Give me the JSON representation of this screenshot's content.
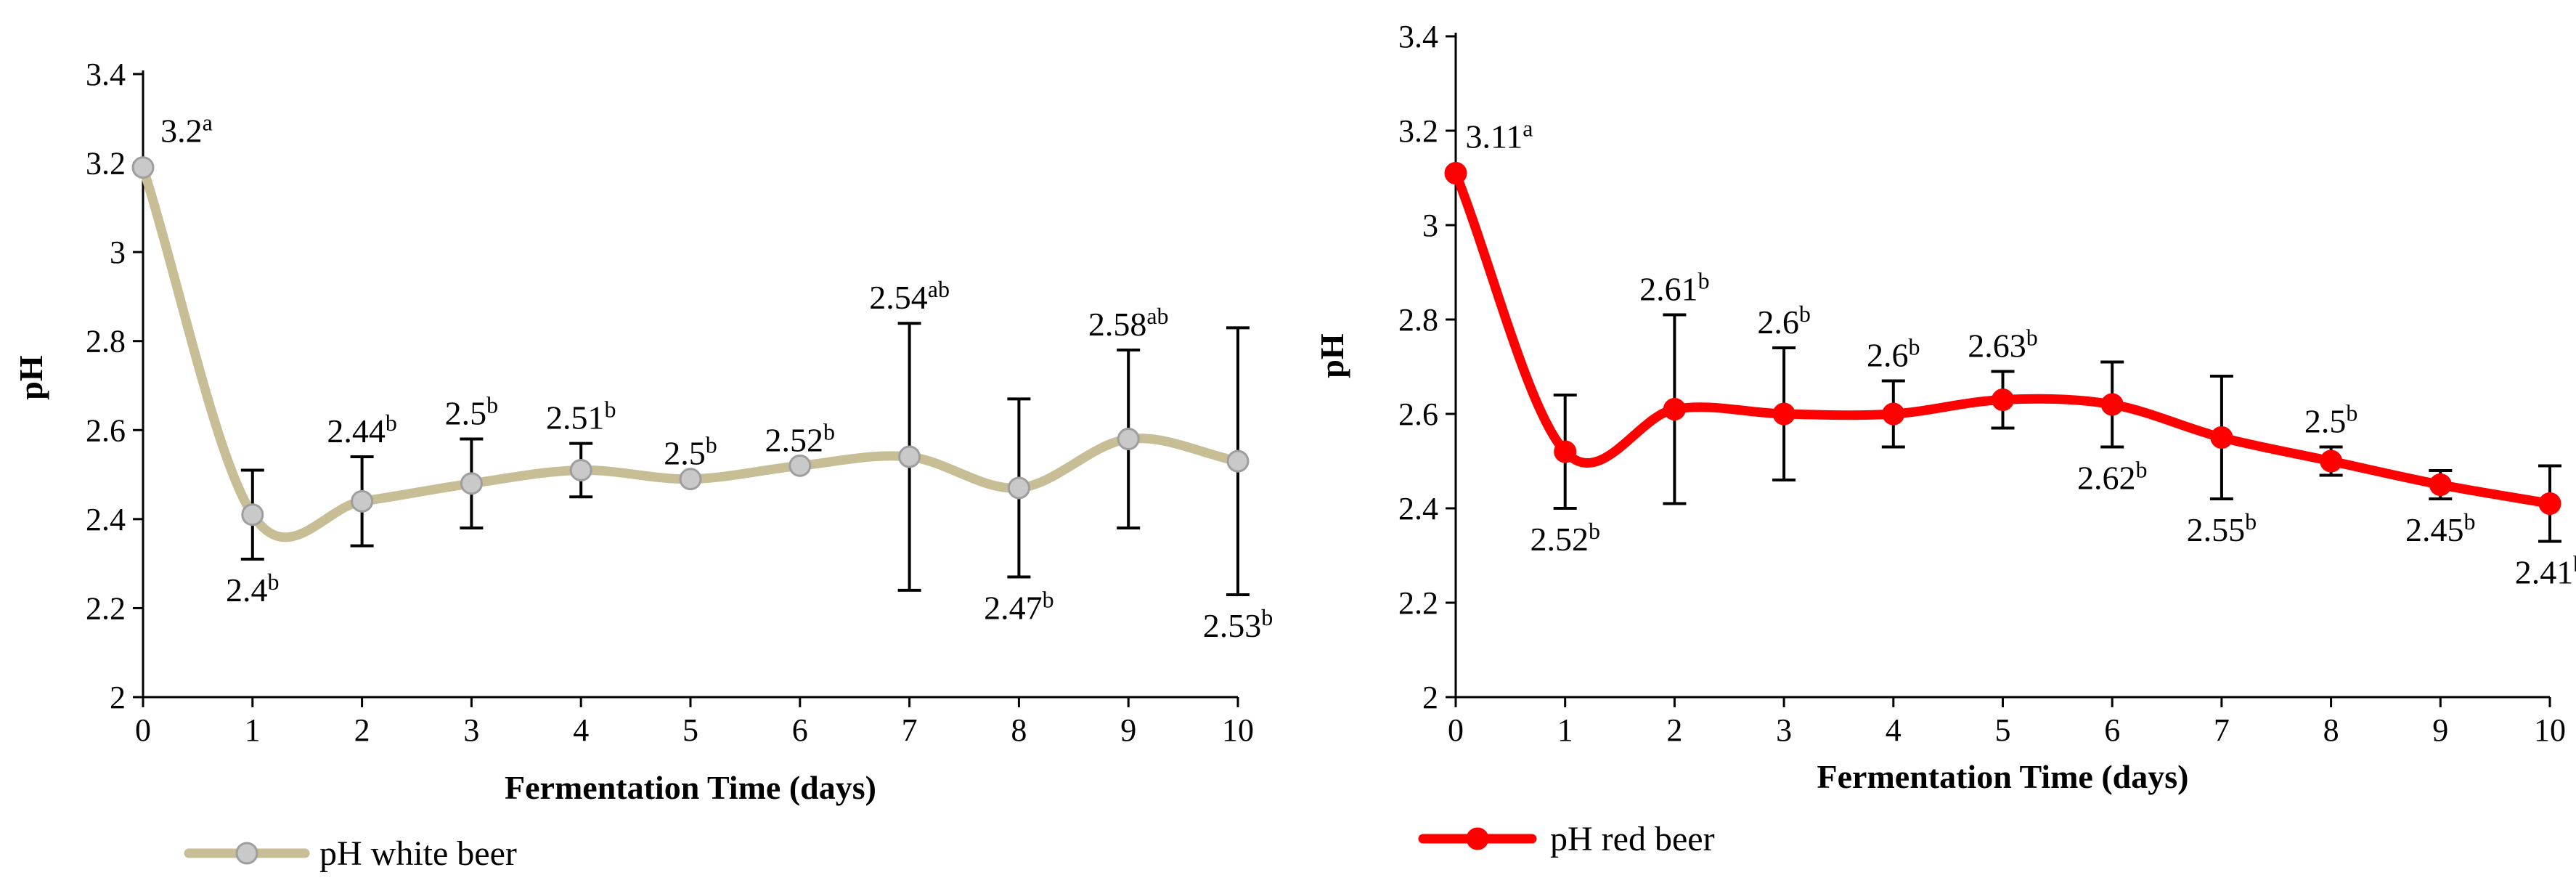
{
  "chart_data": [
    {
      "type": "line",
      "series_name": "pH white beer",
      "color": "#C8BE96",
      "marker_fill": "#C9C9C9",
      "marker_stroke": "#9E9E9E",
      "xlabel": "Fermentation Time (days)",
      "ylabel": "pH",
      "xlim": [
        0,
        10
      ],
      "ylim": [
        2,
        3.4
      ],
      "x_ticks": [
        "0",
        "1",
        "2",
        "3",
        "4",
        "5",
        "6",
        "7",
        "8",
        "9",
        "10"
      ],
      "y_ticks": [
        "2",
        "2.2",
        "2.4",
        "2.6",
        "2.8",
        "3",
        "3.2",
        "3.4"
      ],
      "x": [
        0,
        1,
        2,
        3,
        4,
        5,
        6,
        7,
        8,
        9,
        10
      ],
      "values": [
        3.19,
        2.41,
        2.44,
        2.48,
        2.51,
        2.49,
        2.52,
        2.54,
        2.47,
        2.58,
        2.53
      ],
      "error": [
        0,
        0.1,
        0.1,
        0.1,
        0.06,
        0,
        0,
        0.3,
        0.2,
        0.2,
        0.3
      ],
      "labels": [
        {
          "value": "3.2",
          "sup": "a"
        },
        {
          "value": "2.4",
          "sup": "b"
        },
        {
          "value": "2.44",
          "sup": "b"
        },
        {
          "value": "2.5",
          "sup": "b"
        },
        {
          "value": "2.51",
          "sup": "b"
        },
        {
          "value": "2.5",
          "sup": "b"
        },
        {
          "value": "2.52",
          "sup": "b"
        },
        {
          "value": "2.54",
          "sup": "ab"
        },
        {
          "value": "2.47",
          "sup": "b"
        },
        {
          "value": "2.58",
          "sup": "ab"
        },
        {
          "value": "2.53",
          "sup": "b"
        }
      ],
      "label_side": [
        "top",
        "bottom",
        "top",
        "top",
        "top",
        "top",
        "top",
        "top",
        "bottom",
        "top",
        "bottom"
      ],
      "legend": "pH white beer"
    },
    {
      "type": "line",
      "series_name": "pH red beer",
      "color": "#FF0000",
      "marker_fill": "#FF0000",
      "marker_stroke": "#FF0000",
      "xlabel": "Fermentation Time (days)",
      "ylabel": "pH",
      "xlim": [
        0,
        10
      ],
      "ylim": [
        2,
        3.4
      ],
      "x_ticks": [
        "0",
        "1",
        "2",
        "3",
        "4",
        "5",
        "6",
        "7",
        "8",
        "9",
        "10"
      ],
      "y_ticks": [
        "2",
        "2.2",
        "2.4",
        "2.6",
        "2.8",
        "3",
        "3.2",
        "3.4"
      ],
      "x": [
        0,
        1,
        2,
        3,
        4,
        5,
        6,
        7,
        8,
        9,
        10
      ],
      "values": [
        3.11,
        2.52,
        2.61,
        2.6,
        2.6,
        2.63,
        2.62,
        2.55,
        2.5,
        2.45,
        2.41
      ],
      "error": [
        0,
        0.12,
        0.2,
        0.14,
        0.07,
        0.06,
        0.09,
        0.13,
        0.03,
        0.03,
        0.08
      ],
      "labels": [
        {
          "value": "3.11",
          "sup": "a"
        },
        {
          "value": "2.52",
          "sup": "b"
        },
        {
          "value": "2.61",
          "sup": "b"
        },
        {
          "value": "2.6",
          "sup": "b"
        },
        {
          "value": "2.6",
          "sup": "b"
        },
        {
          "value": "2.63",
          "sup": "b"
        },
        {
          "value": "2.62",
          "sup": "b"
        },
        {
          "value": "2.55",
          "sup": "b"
        },
        {
          "value": "2.5",
          "sup": "b"
        },
        {
          "value": "2.45",
          "sup": "b"
        },
        {
          "value": "2.41",
          "sup": "b"
        }
      ],
      "label_side": [
        "top",
        "bottom",
        "top",
        "top",
        "top",
        "top",
        "bottom",
        "bottom",
        "top",
        "bottom",
        "bottom"
      ],
      "legend": "pH red beer"
    }
  ]
}
